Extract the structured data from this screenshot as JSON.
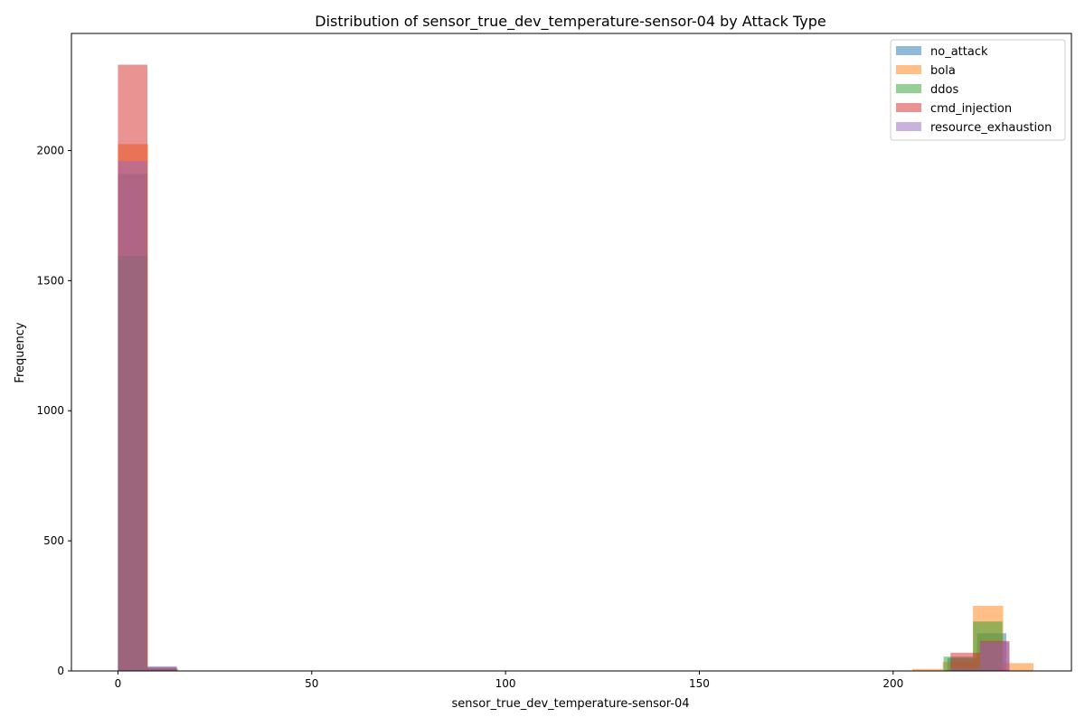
{
  "chart_data": {
    "type": "histogram",
    "title": "Distribution of sensor_true_dev_temperature-sensor-04 by Attack Type",
    "xlabel": "sensor_true_dev_temperature-sensor-04",
    "ylabel": "Frequency",
    "xlim": [
      -12,
      246
    ],
    "ylim": [
      0,
      2450
    ],
    "x_ticks": [
      0,
      50,
      100,
      150,
      200
    ],
    "y_ticks": [
      0,
      500,
      1000,
      1500,
      2000
    ],
    "grid": false,
    "legend_position": "top-right",
    "bar_alpha": 0.5,
    "series": [
      {
        "name": "no_attack",
        "color": "#1f77b4",
        "bins": [
          {
            "x0": 0,
            "x1": 7.6,
            "count": 1910
          },
          {
            "x0": 7.6,
            "x1": 15.2,
            "count": 15
          },
          {
            "x0": 214,
            "x1": 221.6,
            "count": 50
          },
          {
            "x0": 221.6,
            "x1": 229.2,
            "count": 145
          }
        ]
      },
      {
        "name": "bola",
        "color": "#ff7f0e",
        "bins": [
          {
            "x0": 0,
            "x1": 7.8,
            "count": 2025
          },
          {
            "x0": 7.8,
            "x1": 15.6,
            "count": 8
          },
          {
            "x0": 205,
            "x1": 212.8,
            "count": 8
          },
          {
            "x0": 212.8,
            "x1": 220.6,
            "count": 35
          },
          {
            "x0": 220.6,
            "x1": 228.4,
            "count": 250
          },
          {
            "x0": 228.4,
            "x1": 236.2,
            "count": 30
          }
        ]
      },
      {
        "name": "ddos",
        "color": "#2ca02c",
        "bins": [
          {
            "x0": 0,
            "x1": 7.6,
            "count": 1595
          },
          {
            "x0": 7.6,
            "x1": 15.2,
            "count": 10
          },
          {
            "x0": 213,
            "x1": 220.6,
            "count": 55
          },
          {
            "x0": 220.6,
            "x1": 228.2,
            "count": 190
          }
        ]
      },
      {
        "name": "cmd_injection",
        "color": "#d62728",
        "bins": [
          {
            "x0": 0,
            "x1": 7.6,
            "count": 2330
          },
          {
            "x0": 7.6,
            "x1": 15.2,
            "count": 12
          },
          {
            "x0": 214.8,
            "x1": 222.4,
            "count": 70
          },
          {
            "x0": 222.4,
            "x1": 230,
            "count": 115
          }
        ]
      },
      {
        "name": "resource_exhaustion",
        "color": "#9467bd",
        "bins": [
          {
            "x0": 0,
            "x1": 7.6,
            "count": 1960
          },
          {
            "x0": 7.6,
            "x1": 15.2,
            "count": 18
          },
          {
            "x0": 214.8,
            "x1": 222.4,
            "count": 10
          },
          {
            "x0": 222.4,
            "x1": 230,
            "count": 110
          }
        ]
      }
    ]
  }
}
